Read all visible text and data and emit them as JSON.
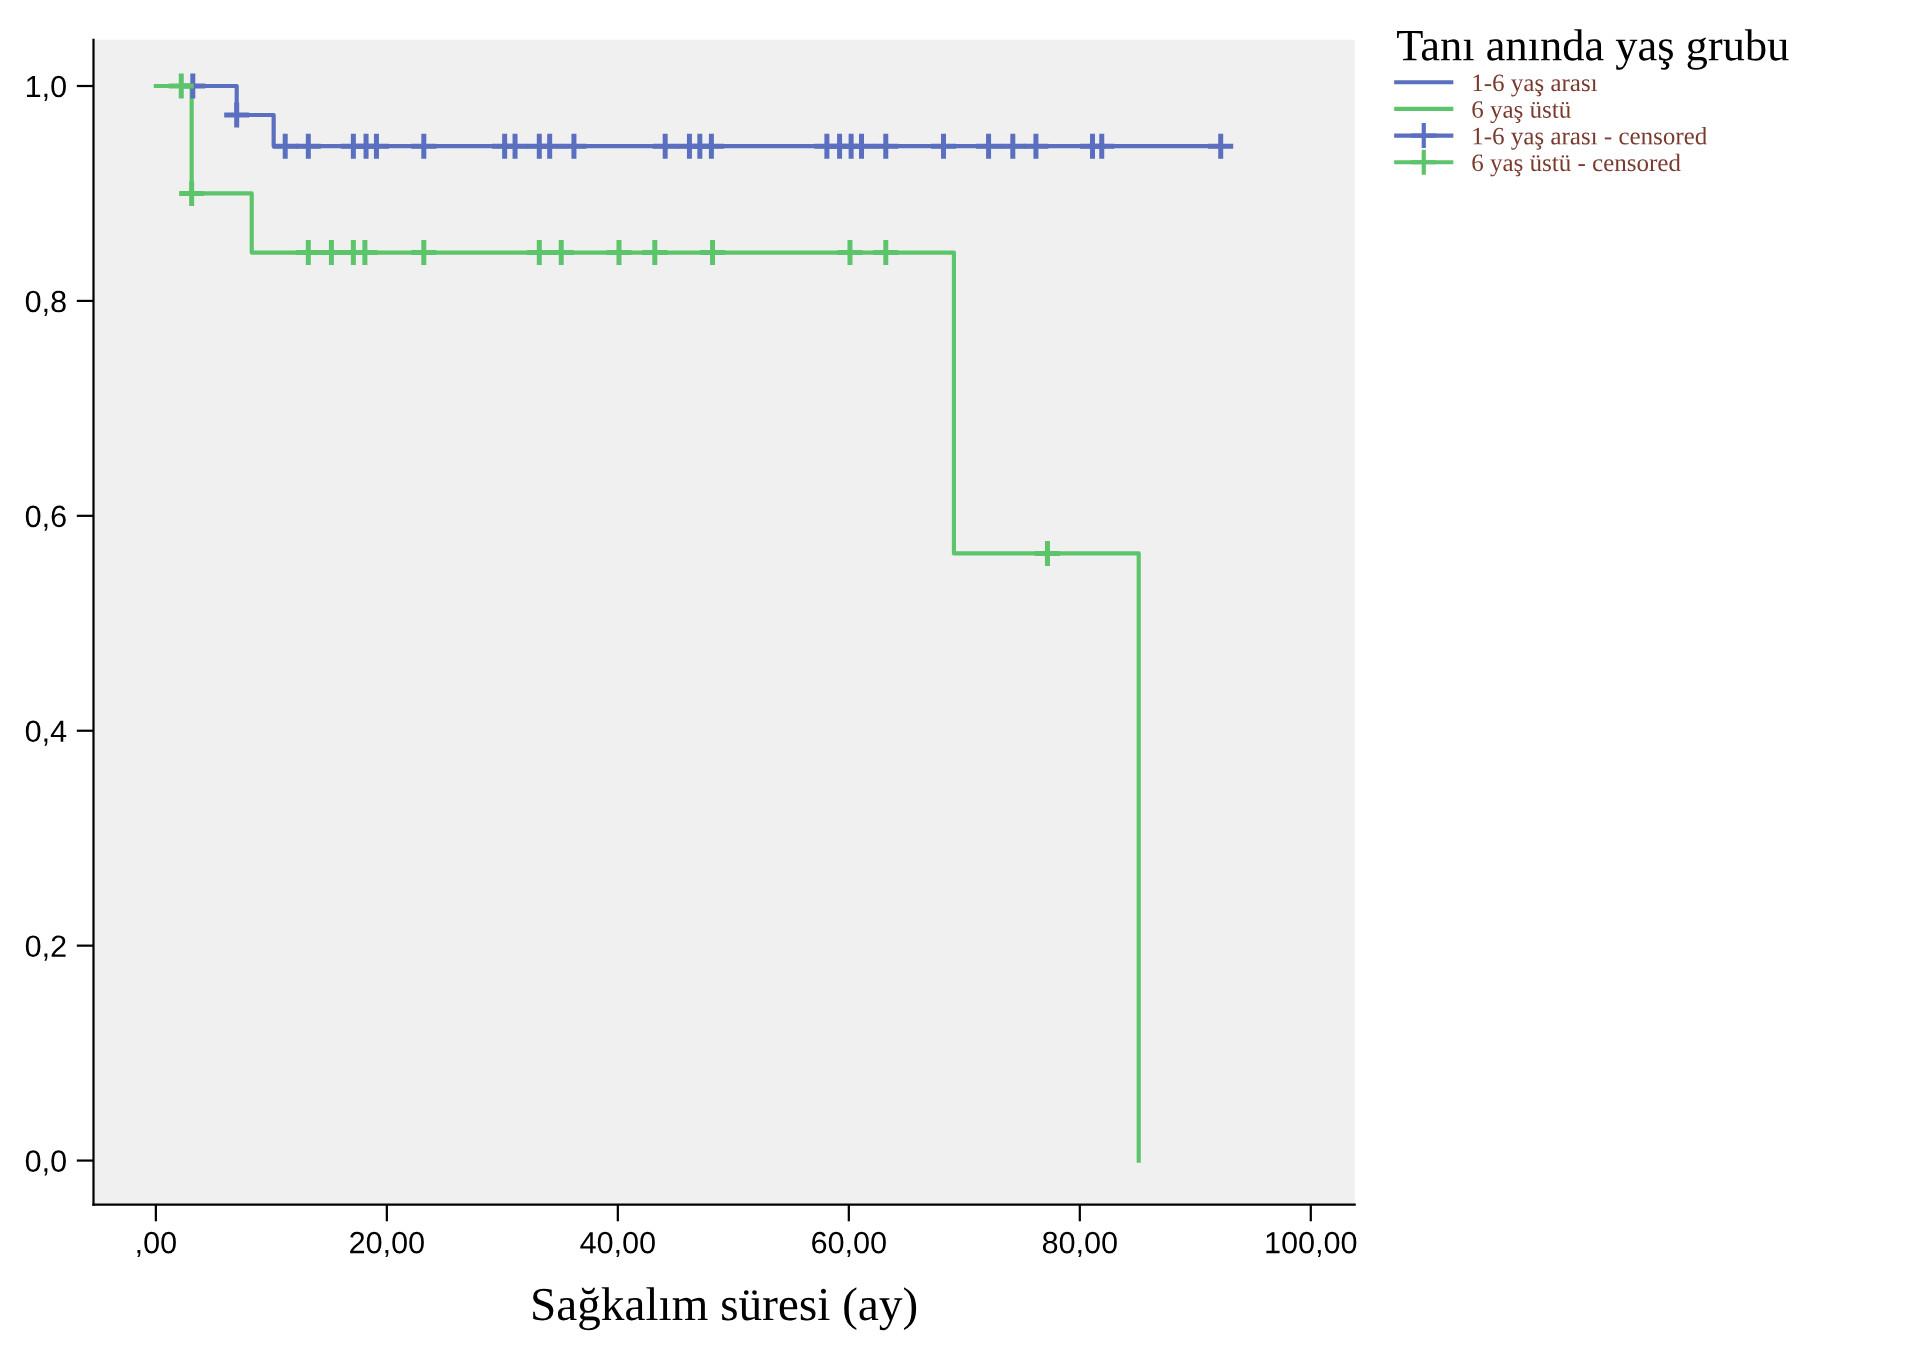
{
  "chart_data": {
    "type": "step",
    "xlabel": "Sağkalım süresi (ay)",
    "legend_title": "Tanı anında yaş grubu",
    "xlim": [
      -5.4,
      103.8
    ],
    "ylim": [
      -0.041,
      1.043
    ],
    "xticks": [
      {
        "value": 0,
        "label": ",00"
      },
      {
        "value": 20,
        "label": "20,00"
      },
      {
        "value": 40,
        "label": "40,00"
      },
      {
        "value": 60,
        "label": "60,00"
      },
      {
        "value": 80,
        "label": "80,00"
      },
      {
        "value": 100,
        "label": "100,00"
      }
    ],
    "yticks": [
      {
        "value": 0,
        "label": "0,0"
      },
      {
        "value": 0.2,
        "label": "0,2"
      },
      {
        "value": 0.4,
        "label": "0,4"
      },
      {
        "value": 0.6,
        "label": "0,6"
      },
      {
        "value": 0.8,
        "label": "0,8"
      },
      {
        "value": 1.0,
        "label": "1,0"
      }
    ],
    "grid": false,
    "legend": "top right",
    "series": [
      {
        "name": "1-6 yaş arası",
        "color": "#5a6fbf",
        "x": [
          3.2,
          7.0,
          10.2,
          92.2
        ],
        "values": [
          1.0,
          0.973,
          0.944,
          0.944
        ]
      },
      {
        "name": "6 yaş üstü",
        "color": "#5cc46a",
        "x": [
          0,
          3.1,
          8.3,
          69.1,
          85.1
        ],
        "values": [
          1.0,
          0.9,
          0.845,
          0.565,
          0.0
        ]
      },
      {
        "name": "1-6 yaş arası - censored",
        "type": "scatter",
        "marker": "cross",
        "color": "#5a6fbf",
        "x": [
          3.2,
          7.0,
          11.2,
          13.2,
          17.1,
          18.2,
          19.1,
          23.2,
          30.2,
          31.1,
          33.2,
          34.1,
          36.2,
          44.1,
          46.2,
          47.1,
          48.1,
          58.1,
          59.2,
          60.2,
          61.1,
          63.2,
          68.2,
          72.1,
          74.2,
          76.2,
          81.1,
          81.9,
          92.2
        ],
        "values": [
          1.0,
          0.973,
          0.944,
          0.944,
          0.944,
          0.944,
          0.944,
          0.944,
          0.944,
          0.944,
          0.944,
          0.944,
          0.944,
          0.944,
          0.944,
          0.944,
          0.944,
          0.944,
          0.944,
          0.944,
          0.944,
          0.944,
          0.944,
          0.944,
          0.944,
          0.944,
          0.944,
          0.944,
          0.944
        ]
      },
      {
        "name": "6 yaş üstü - censored",
        "type": "scatter",
        "marker": "cross",
        "color": "#5cc46a",
        "x": [
          2.2,
          3.1,
          13.2,
          15.2,
          17.1,
          18.1,
          23.2,
          33.2,
          35.1,
          40.1,
          43.2,
          48.2,
          60.1,
          63.2,
          77.2
        ],
        "values": [
          1.0,
          0.9,
          0.845,
          0.845,
          0.845,
          0.845,
          0.845,
          0.845,
          0.845,
          0.845,
          0.845,
          0.845,
          0.845,
          0.845,
          0.565
        ]
      }
    ]
  }
}
